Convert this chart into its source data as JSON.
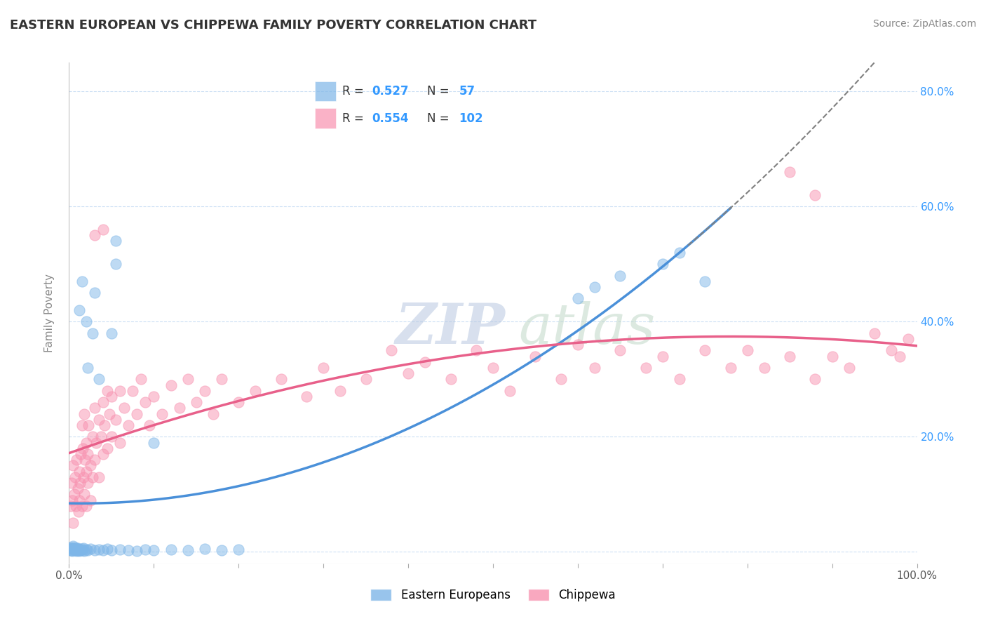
{
  "title": "EASTERN EUROPEAN VS CHIPPEWA FAMILY POVERTY CORRELATION CHART",
  "source": "Source: ZipAtlas.com",
  "ylabel": "Family Poverty",
  "watermark_zip": "ZIP",
  "watermark_atlas": "atlas",
  "blue_color": "#7EB6E8",
  "pink_color": "#F892B0",
  "blue_scatter": [
    [
      0.001,
      0.005
    ],
    [
      0.002,
      0.003
    ],
    [
      0.002,
      0.008
    ],
    [
      0.003,
      0.005
    ],
    [
      0.003,
      0.003
    ],
    [
      0.004,
      0.007
    ],
    [
      0.004,
      0.002
    ],
    [
      0.005,
      0.01
    ],
    [
      0.005,
      0.006
    ],
    [
      0.006,
      0.004
    ],
    [
      0.007,
      0.008
    ],
    [
      0.007,
      0.003
    ],
    [
      0.008,
      0.005
    ],
    [
      0.009,
      0.002
    ],
    [
      0.01,
      0.007
    ],
    [
      0.01,
      0.003
    ],
    [
      0.011,
      0.005
    ],
    [
      0.012,
      0.002
    ],
    [
      0.013,
      0.004
    ],
    [
      0.014,
      0.003
    ],
    [
      0.015,
      0.005
    ],
    [
      0.016,
      0.003
    ],
    [
      0.017,
      0.006
    ],
    [
      0.018,
      0.002
    ],
    [
      0.02,
      0.004
    ],
    [
      0.022,
      0.003
    ],
    [
      0.025,
      0.005
    ],
    [
      0.03,
      0.003
    ],
    [
      0.035,
      0.004
    ],
    [
      0.04,
      0.003
    ],
    [
      0.045,
      0.005
    ],
    [
      0.05,
      0.003
    ],
    [
      0.06,
      0.004
    ],
    [
      0.07,
      0.003
    ],
    [
      0.08,
      0.002
    ],
    [
      0.09,
      0.004
    ],
    [
      0.1,
      0.003
    ],
    [
      0.12,
      0.004
    ],
    [
      0.14,
      0.003
    ],
    [
      0.16,
      0.005
    ],
    [
      0.18,
      0.003
    ],
    [
      0.2,
      0.004
    ],
    [
      0.02,
      0.4
    ],
    [
      0.022,
      0.32
    ],
    [
      0.03,
      0.45
    ],
    [
      0.028,
      0.38
    ],
    [
      0.012,
      0.42
    ],
    [
      0.015,
      0.47
    ],
    [
      0.05,
      0.38
    ],
    [
      0.035,
      0.3
    ],
    [
      0.055,
      0.54
    ],
    [
      0.055,
      0.5
    ],
    [
      0.1,
      0.19
    ],
    [
      0.6,
      0.44
    ],
    [
      0.62,
      0.46
    ],
    [
      0.65,
      0.48
    ],
    [
      0.7,
      0.5
    ],
    [
      0.72,
      0.52
    ],
    [
      0.75,
      0.47
    ]
  ],
  "pink_scatter": [
    [
      0.002,
      0.08
    ],
    [
      0.003,
      0.12
    ],
    [
      0.004,
      0.09
    ],
    [
      0.005,
      0.15
    ],
    [
      0.005,
      0.05
    ],
    [
      0.006,
      0.1
    ],
    [
      0.007,
      0.13
    ],
    [
      0.008,
      0.08
    ],
    [
      0.009,
      0.16
    ],
    [
      0.01,
      0.11
    ],
    [
      0.011,
      0.07
    ],
    [
      0.012,
      0.14
    ],
    [
      0.012,
      0.09
    ],
    [
      0.013,
      0.12
    ],
    [
      0.014,
      0.17
    ],
    [
      0.015,
      0.08
    ],
    [
      0.015,
      0.22
    ],
    [
      0.016,
      0.18
    ],
    [
      0.017,
      0.13
    ],
    [
      0.018,
      0.24
    ],
    [
      0.018,
      0.1
    ],
    [
      0.019,
      0.16
    ],
    [
      0.02,
      0.14
    ],
    [
      0.02,
      0.19
    ],
    [
      0.02,
      0.08
    ],
    [
      0.022,
      0.17
    ],
    [
      0.022,
      0.12
    ],
    [
      0.023,
      0.22
    ],
    [
      0.025,
      0.15
    ],
    [
      0.025,
      0.09
    ],
    [
      0.028,
      0.2
    ],
    [
      0.028,
      0.13
    ],
    [
      0.03,
      0.25
    ],
    [
      0.03,
      0.16
    ],
    [
      0.032,
      0.19
    ],
    [
      0.035,
      0.23
    ],
    [
      0.035,
      0.13
    ],
    [
      0.038,
      0.2
    ],
    [
      0.04,
      0.26
    ],
    [
      0.04,
      0.17
    ],
    [
      0.042,
      0.22
    ],
    [
      0.045,
      0.18
    ],
    [
      0.045,
      0.28
    ],
    [
      0.048,
      0.24
    ],
    [
      0.05,
      0.2
    ],
    [
      0.05,
      0.27
    ],
    [
      0.055,
      0.23
    ],
    [
      0.06,
      0.28
    ],
    [
      0.06,
      0.19
    ],
    [
      0.065,
      0.25
    ],
    [
      0.07,
      0.22
    ],
    [
      0.075,
      0.28
    ],
    [
      0.08,
      0.24
    ],
    [
      0.085,
      0.3
    ],
    [
      0.09,
      0.26
    ],
    [
      0.095,
      0.22
    ],
    [
      0.1,
      0.27
    ],
    [
      0.11,
      0.24
    ],
    [
      0.12,
      0.29
    ],
    [
      0.13,
      0.25
    ],
    [
      0.14,
      0.3
    ],
    [
      0.15,
      0.26
    ],
    [
      0.16,
      0.28
    ],
    [
      0.17,
      0.24
    ],
    [
      0.18,
      0.3
    ],
    [
      0.2,
      0.26
    ],
    [
      0.22,
      0.28
    ],
    [
      0.25,
      0.3
    ],
    [
      0.28,
      0.27
    ],
    [
      0.3,
      0.32
    ],
    [
      0.32,
      0.28
    ],
    [
      0.35,
      0.3
    ],
    [
      0.38,
      0.35
    ],
    [
      0.4,
      0.31
    ],
    [
      0.42,
      0.33
    ],
    [
      0.45,
      0.3
    ],
    [
      0.48,
      0.35
    ],
    [
      0.5,
      0.32
    ],
    [
      0.52,
      0.28
    ],
    [
      0.55,
      0.34
    ],
    [
      0.58,
      0.3
    ],
    [
      0.6,
      0.36
    ],
    [
      0.62,
      0.32
    ],
    [
      0.65,
      0.35
    ],
    [
      0.68,
      0.32
    ],
    [
      0.7,
      0.34
    ],
    [
      0.72,
      0.3
    ],
    [
      0.75,
      0.35
    ],
    [
      0.78,
      0.32
    ],
    [
      0.8,
      0.35
    ],
    [
      0.82,
      0.32
    ],
    [
      0.85,
      0.34
    ],
    [
      0.88,
      0.3
    ],
    [
      0.9,
      0.34
    ],
    [
      0.92,
      0.32
    ],
    [
      0.95,
      0.38
    ],
    [
      0.97,
      0.35
    ],
    [
      0.03,
      0.55
    ],
    [
      0.04,
      0.56
    ],
    [
      0.85,
      0.66
    ],
    [
      0.88,
      0.62
    ],
    [
      0.99,
      0.37
    ],
    [
      0.98,
      0.34
    ]
  ],
  "xlim": [
    0.0,
    1.0
  ],
  "ylim": [
    -0.02,
    0.85
  ],
  "yticks": [
    0.0,
    0.2,
    0.4,
    0.6,
    0.8
  ],
  "ytick_labels": [
    "",
    "20.0%",
    "40.0%",
    "60.0%",
    "80.0%"
  ]
}
